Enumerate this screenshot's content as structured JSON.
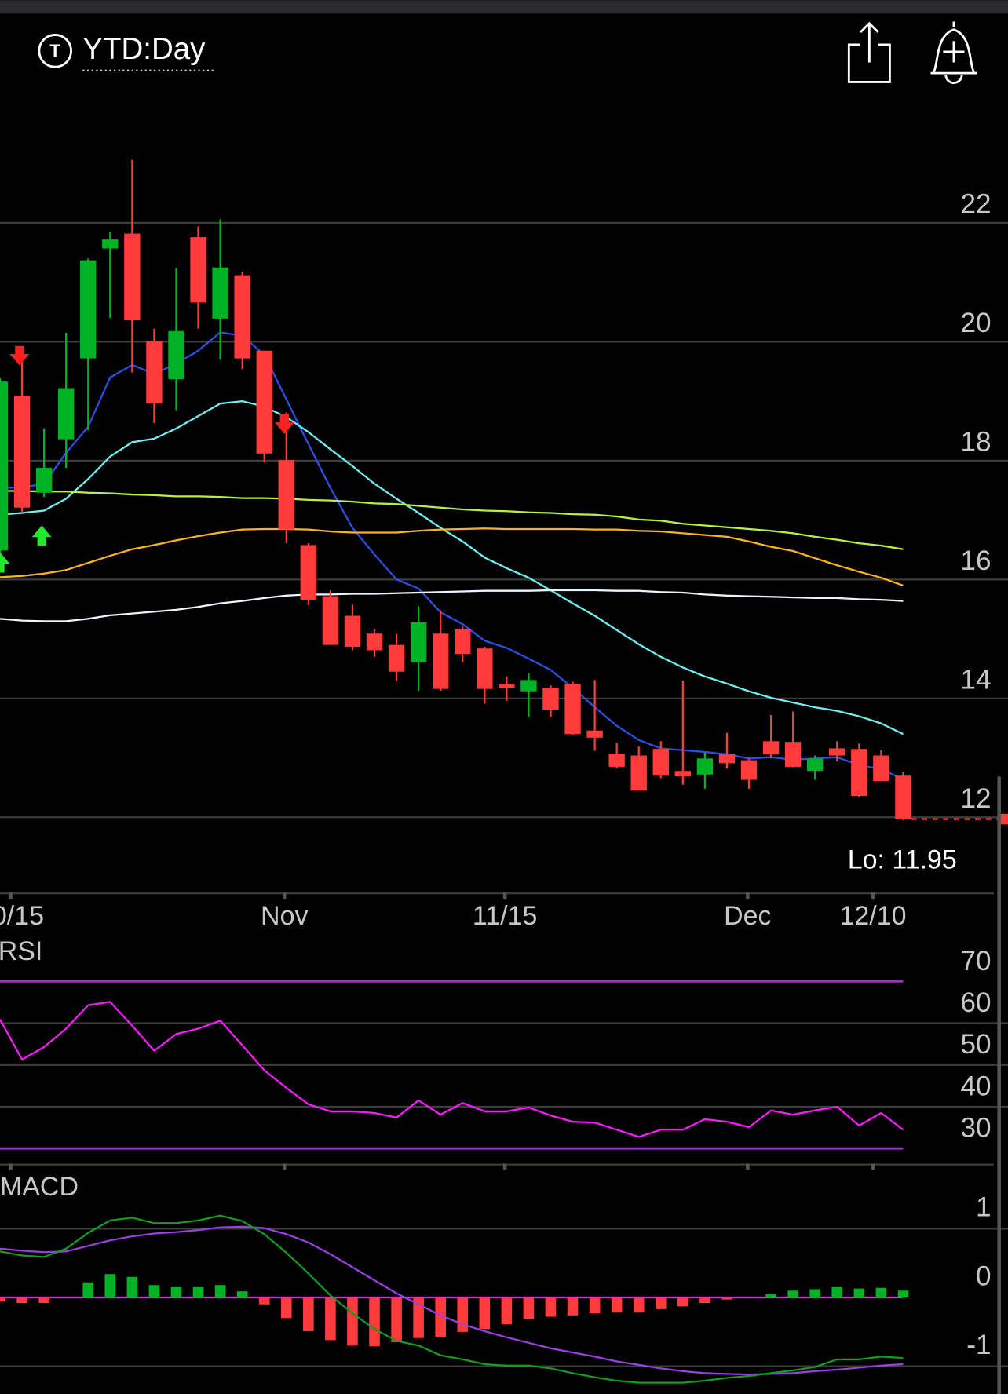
{
  "header": {
    "period": "YTD:Day"
  },
  "chart_data": [
    {
      "type": "candlestick",
      "open": [
        16.49,
        19.09,
        17.46,
        18.36,
        19.72,
        21.57,
        21.82,
        20.01,
        19.37,
        21.76,
        20.39,
        21.12,
        19.85,
        18.01,
        16.58,
        15.72,
        15.39,
        15.09,
        14.9,
        14.61,
        15.09,
        15.16,
        14.84,
        14.24,
        14.12,
        14.18,
        14.24,
        13.46,
        13.07,
        13.04,
        13.15,
        12.78,
        12.72,
        13.06,
        12.96,
        13.28,
        13.27,
        12.78,
        13.16,
        13.15,
        13.04,
        12.7
      ],
      "high": [
        19.4,
        19.85,
        18.54,
        20.15,
        21.4,
        21.84,
        23.06,
        20.22,
        21.24,
        21.94,
        22.06,
        21.18,
        19.85,
        18.81,
        16.61,
        15.82,
        15.58,
        15.16,
        15.09,
        15.55,
        15.48,
        15.21,
        14.87,
        14.37,
        14.42,
        14.22,
        14.28,
        14.31,
        13.25,
        13.19,
        13.28,
        14.3,
        13.09,
        13.42,
        12.99,
        13.72,
        13.78,
        13.04,
        13.28,
        13.24,
        13.13,
        12.76
      ],
      "low": [
        16.4,
        17.12,
        17.39,
        17.88,
        18.51,
        20.4,
        19.48,
        18.63,
        18.85,
        20.22,
        19.7,
        19.54,
        17.97,
        16.61,
        15.57,
        14.9,
        14.81,
        14.7,
        14.3,
        14.13,
        14.13,
        14.61,
        13.91,
        13.96,
        13.69,
        13.69,
        13.39,
        13.12,
        12.82,
        12.45,
        12.66,
        12.55,
        12.48,
        12.82,
        12.48,
        12.99,
        12.84,
        12.63,
        12.94,
        12.34,
        12.61,
        11.95
      ],
      "close": [
        19.33,
        17.21,
        17.88,
        19.22,
        21.37,
        21.72,
        20.36,
        18.96,
        20.18,
        20.66,
        21.25,
        19.72,
        18.12,
        16.84,
        15.66,
        14.9,
        14.87,
        14.81,
        14.45,
        15.28,
        14.16,
        14.75,
        14.16,
        14.18,
        14.31,
        13.81,
        13.4,
        13.34,
        12.85,
        12.45,
        12.7,
        12.69,
        12.99,
        12.91,
        12.63,
        13.06,
        12.85,
        12.99,
        13.04,
        12.36,
        12.61,
        11.97
      ],
      "up_color": "#00b324",
      "down_color": "#ff3b3b",
      "overlays": [
        {
          "color": "#2b50e8",
          "values": [
            17.54,
            17.55,
            17.61,
            18.13,
            18.57,
            19.4,
            19.61,
            19.46,
            19.63,
            19.85,
            20.16,
            20.1,
            19.78,
            19.03,
            18.28,
            17.54,
            16.87,
            16.42,
            16.0,
            15.85,
            15.45,
            15.25,
            14.97,
            14.85,
            14.67,
            14.48,
            14.18,
            13.85,
            13.54,
            13.3,
            13.16,
            13.13,
            13.1,
            13.06,
            12.99,
            13.01,
            12.97,
            12.99,
            13.01,
            12.88,
            12.81,
            12.64
          ]
        },
        {
          "color": "#6ff0f0",
          "values": [
            17.09,
            17.12,
            17.16,
            17.36,
            17.69,
            18.07,
            18.31,
            18.37,
            18.54,
            18.75,
            18.96,
            19.0,
            18.91,
            18.73,
            18.48,
            18.19,
            17.91,
            17.61,
            17.36,
            17.12,
            16.87,
            16.64,
            16.37,
            16.19,
            16.03,
            15.82,
            15.6,
            15.39,
            15.15,
            14.91,
            14.7,
            14.52,
            14.37,
            14.25,
            14.12,
            14.01,
            13.93,
            13.85,
            13.79,
            13.7,
            13.58,
            13.4
          ]
        },
        {
          "color": "#b8f23a",
          "values": [
            17.49,
            17.49,
            17.48,
            17.48,
            17.46,
            17.45,
            17.43,
            17.42,
            17.4,
            17.4,
            17.39,
            17.37,
            17.37,
            17.36,
            17.34,
            17.33,
            17.31,
            17.28,
            17.27,
            17.24,
            17.21,
            17.18,
            17.16,
            17.15,
            17.13,
            17.12,
            17.1,
            17.09,
            17.06,
            17.01,
            16.99,
            16.94,
            16.91,
            16.88,
            16.85,
            16.82,
            16.78,
            16.72,
            16.67,
            16.61,
            16.57,
            16.51
          ]
        },
        {
          "color": "#ffb31a",
          "values": [
            16.04,
            16.06,
            16.1,
            16.16,
            16.28,
            16.4,
            16.51,
            16.58,
            16.66,
            16.73,
            16.79,
            16.84,
            16.85,
            16.85,
            16.84,
            16.81,
            16.79,
            16.79,
            16.79,
            16.82,
            16.84,
            16.85,
            16.86,
            16.85,
            16.85,
            16.85,
            16.85,
            16.84,
            16.84,
            16.82,
            16.81,
            16.78,
            16.75,
            16.72,
            16.64,
            16.55,
            16.48,
            16.36,
            16.24,
            16.13,
            16.03,
            15.9
          ]
        },
        {
          "color": "#e8f4ff",
          "values": [
            15.34,
            15.31,
            15.3,
            15.3,
            15.34,
            15.4,
            15.43,
            15.46,
            15.49,
            15.54,
            15.6,
            15.64,
            15.69,
            15.73,
            15.75,
            15.75,
            15.76,
            15.76,
            15.77,
            15.78,
            15.79,
            15.8,
            15.81,
            15.81,
            15.81,
            15.82,
            15.82,
            15.82,
            15.81,
            15.81,
            15.79,
            15.78,
            15.75,
            15.73,
            15.72,
            15.71,
            15.7,
            15.69,
            15.69,
            15.67,
            15.66,
            15.64
          ]
        }
      ],
      "low_label": "Lo: 11.95",
      "ylim": [
        10.75,
        24.25
      ],
      "yticks": [
        12,
        14,
        16,
        18,
        20,
        22
      ],
      "xlim": [
        0,
        45.76
      ],
      "xticks": [
        {
          "value": 0.48,
          "label": "10/15"
        },
        {
          "value": 12.91,
          "label": "Nov"
        },
        {
          "value": 22.92,
          "label": "11/15"
        },
        {
          "value": 33.94,
          "label": "Dec"
        },
        {
          "value": 39.63,
          "label": "12/10"
        }
      ]
    },
    {
      "type": "line",
      "title": "RSI",
      "color": "#ff1aff",
      "values": [
        60.9,
        51.3,
        54.3,
        58.7,
        64.3,
        65.1,
        59.4,
        53.4,
        57.4,
        58.7,
        60.6,
        54.7,
        48.7,
        44.5,
        40.6,
        38.9,
        38.9,
        38.5,
        37.4,
        41.5,
        38.1,
        40.9,
        38.9,
        38.9,
        39.8,
        37.9,
        36.4,
        36.2,
        34.5,
        32.8,
        34.5,
        34.5,
        37.0,
        36.4,
        35.1,
        39.1,
        38.1,
        39.1,
        40.0,
        35.5,
        38.5,
        34.5
      ],
      "bands": [
        30,
        70
      ],
      "band_color": "#9b2fd0",
      "ylim": [
        26.6,
        80.2
      ],
      "yticks": [
        30,
        40,
        50,
        60,
        70
      ],
      "xlim": [
        0,
        45.76
      ]
    },
    {
      "type": "macd",
      "title": "MACD",
      "macd": [
        0.67,
        0.61,
        0.59,
        0.71,
        0.94,
        1.12,
        1.16,
        1.08,
        1.08,
        1.12,
        1.19,
        1.11,
        0.92,
        0.65,
        0.35,
        0.03,
        -0.23,
        -0.46,
        -0.63,
        -0.7,
        -0.84,
        -0.9,
        -0.97,
        -0.99,
        -0.99,
        -1.03,
        -1.1,
        -1.16,
        -1.21,
        -1.24,
        -1.24,
        -1.24,
        -1.21,
        -1.17,
        -1.14,
        -1.1,
        -1.06,
        -1.01,
        -0.9,
        -0.9,
        -0.86,
        -0.88
      ],
      "signal": [
        0.71,
        0.68,
        0.66,
        0.67,
        0.75,
        0.83,
        0.89,
        0.93,
        0.95,
        0.98,
        1.02,
        1.03,
        1.01,
        0.92,
        0.8,
        0.63,
        0.44,
        0.25,
        0.06,
        -0.1,
        -0.26,
        -0.39,
        -0.49,
        -0.58,
        -0.66,
        -0.74,
        -0.8,
        -0.86,
        -0.93,
        -0.98,
        -1.03,
        -1.07,
        -1.1,
        -1.11,
        -1.12,
        -1.11,
        -1.1,
        -1.07,
        -1.05,
        -1.02,
        -0.99,
        -0.97
      ],
      "histogram": [
        -0.06,
        -0.08,
        -0.08,
        0,
        0.22,
        0.34,
        0.3,
        0.18,
        0.15,
        0.15,
        0.18,
        0.09,
        -0.1,
        -0.3,
        -0.49,
        -0.62,
        -0.7,
        -0.71,
        -0.65,
        -0.59,
        -0.57,
        -0.5,
        -0.46,
        -0.39,
        -0.31,
        -0.28,
        -0.26,
        -0.23,
        -0.22,
        -0.22,
        -0.17,
        -0.13,
        -0.08,
        -0.03,
        0,
        0.05,
        0.1,
        0.12,
        0.15,
        0.13,
        0.14,
        0.1
      ],
      "macd_color": "#149c1e",
      "signal_color": "#9a3fe0",
      "up_color": "#00b324",
      "down_color": "#ff3b3b",
      "zero_color": "#ff1aff",
      "ylim": [
        -1.4,
        1.83
      ],
      "yticks": [
        -1,
        0,
        1
      ],
      "xlim": [
        0,
        45.76
      ]
    }
  ]
}
